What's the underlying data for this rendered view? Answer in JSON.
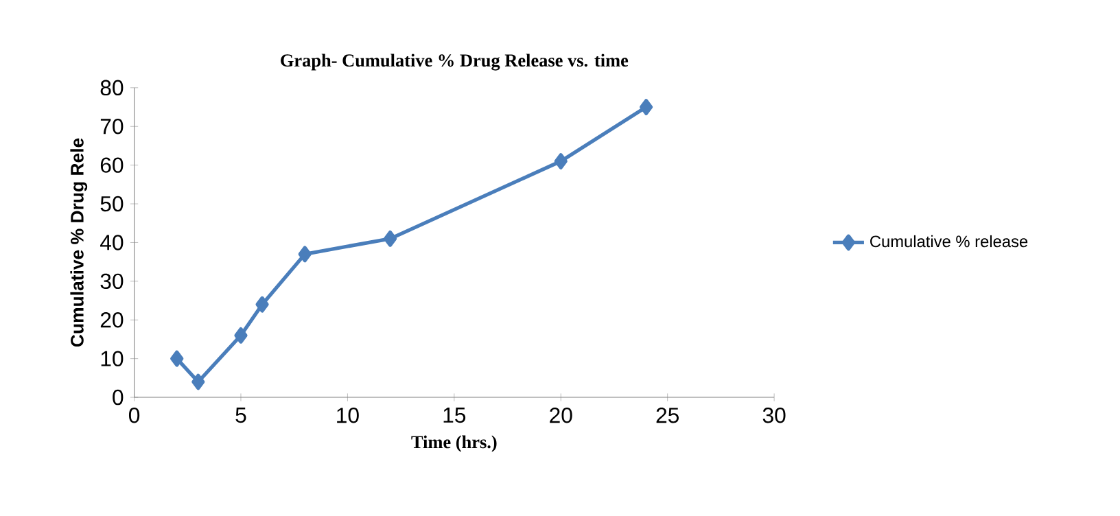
{
  "chart_data": {
    "type": "line",
    "title": "Graph- Cumulative % Drug Release vs. time",
    "xlabel": "Time (hrs.)",
    "ylabel": "Cumulative % Drug Rele",
    "x": [
      2,
      3,
      5,
      6,
      8,
      12,
      20,
      24
    ],
    "series": [
      {
        "name": "Cumulative % release",
        "color": "#4a7ebb",
        "values": [
          10,
          4,
          16,
          24,
          37,
          41,
          61,
          75
        ]
      }
    ],
    "xlim": [
      0,
      30
    ],
    "xticks": [
      0,
      5,
      10,
      15,
      20,
      25,
      30
    ],
    "ylim": [
      0,
      80
    ],
    "yticks": [
      0,
      10,
      20,
      30,
      40,
      50,
      60,
      70,
      80
    ],
    "grid": false,
    "legend": "right",
    "marker": "diamond",
    "line_style": "solid"
  }
}
